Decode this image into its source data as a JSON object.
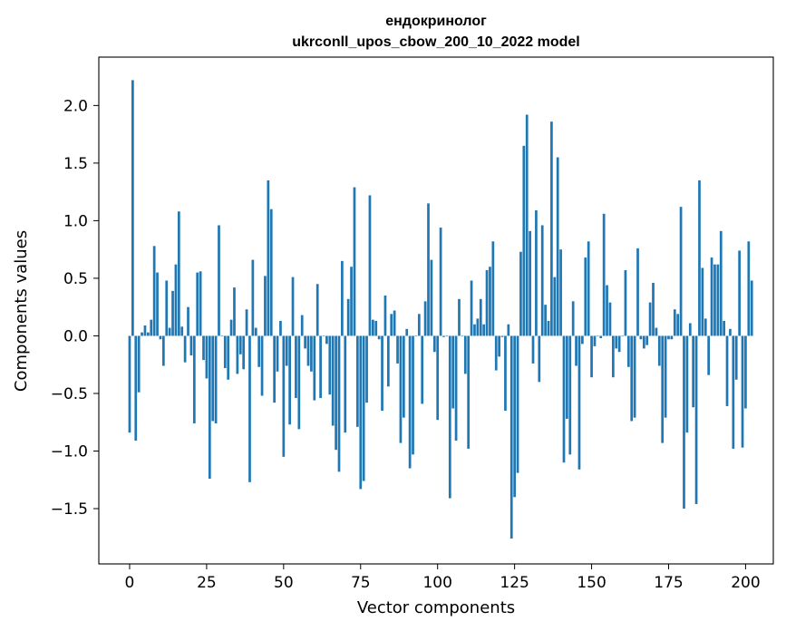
{
  "chart_data": {
    "type": "bar",
    "title_lines": [
      "ендокринолог",
      "ukrconll_upos_cbow_200_10_2022 model"
    ],
    "xlabel": "Vector components",
    "ylabel": "Components values",
    "xlim": [
      -10,
      209
    ],
    "ylim": [
      -1.98,
      2.42
    ],
    "xticks": [
      0,
      25,
      50,
      75,
      100,
      125,
      150,
      175,
      200
    ],
    "yticks": [
      -1.5,
      -1.0,
      -0.5,
      0.0,
      0.5,
      1.0,
      1.5,
      2.0
    ],
    "ytick_labels": [
      "−1.5",
      "−1.0",
      "−0.5",
      "0.0",
      "0.5",
      "1.0",
      "1.5",
      "2.0"
    ],
    "bar_color": "#1f77b4",
    "values": [
      -0.84,
      2.22,
      -0.91,
      -0.49,
      0.03,
      0.09,
      0.03,
      0.14,
      0.78,
      0.55,
      -0.03,
      -0.26,
      0.48,
      0.07,
      0.39,
      0.62,
      1.08,
      0.08,
      -0.23,
      0.25,
      -0.17,
      -0.76,
      0.55,
      0.56,
      -0.21,
      -0.37,
      -1.24,
      -0.74,
      -0.76,
      0.96,
      0.0,
      -0.28,
      -0.38,
      0.14,
      0.42,
      -0.33,
      -0.16,
      -0.29,
      0.23,
      -1.27,
      0.66,
      0.07,
      -0.27,
      -0.52,
      0.52,
      1.35,
      1.1,
      -0.58,
      -0.31,
      0.13,
      -1.05,
      -0.26,
      -0.77,
      0.51,
      -0.54,
      -0.81,
      0.18,
      -0.11,
      -0.26,
      -0.31,
      -0.56,
      0.45,
      -0.54,
      0.0,
      -0.07,
      -0.51,
      -0.78,
      -0.99,
      -1.18,
      0.65,
      -0.84,
      0.32,
      0.6,
      1.29,
      -0.79,
      -1.33,
      -1.26,
      -0.58,
      1.22,
      0.14,
      0.13,
      -0.03,
      -0.65,
      0.35,
      -0.44,
      0.19,
      0.22,
      -0.24,
      -0.93,
      -0.71,
      0.06,
      -1.15,
      -1.03,
      0.0,
      0.19,
      -0.59,
      0.3,
      1.15,
      0.66,
      -0.14,
      -0.73,
      0.94,
      -0.01,
      0.0,
      -1.41,
      -0.63,
      -0.91,
      0.32,
      0.0,
      -0.33,
      -0.98,
      0.48,
      0.1,
      0.15,
      0.32,
      0.1,
      0.57,
      0.6,
      0.82,
      -0.3,
      -0.18,
      -0.01,
      -0.65,
      0.1,
      -1.76,
      -1.4,
      -1.19,
      0.73,
      1.65,
      1.92,
      0.91,
      -0.24,
      1.09,
      -0.4,
      0.96,
      0.27,
      0.13,
      1.86,
      0.51,
      1.55,
      0.75,
      -1.1,
      -0.72,
      -1.03,
      0.3,
      -0.26,
      -1.16,
      -0.07,
      0.68,
      0.82,
      -0.36,
      -0.09,
      0.0,
      -0.02,
      1.06,
      0.44,
      0.29,
      -0.36,
      -0.11,
      -0.14,
      0.0,
      0.57,
      -0.27,
      -0.74,
      -0.71,
      0.76,
      -0.03,
      -0.11,
      -0.08,
      0.29,
      0.46,
      0.07,
      -0.26,
      -0.93,
      -0.71,
      -0.03,
      -0.03,
      0.23,
      0.19,
      1.12,
      -1.5,
      -0.84,
      0.11,
      -0.62,
      -1.46,
      1.35,
      0.59,
      0.15,
      -0.34,
      0.68,
      0.62,
      0.62,
      0.91,
      0.13,
      -0.61,
      0.06,
      -0.98,
      -0.38,
      0.74,
      -0.97,
      -0.63,
      0.82,
      0.48
    ]
  }
}
